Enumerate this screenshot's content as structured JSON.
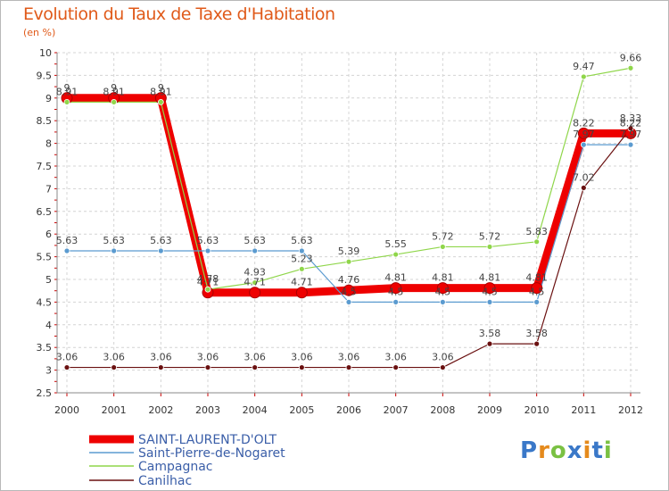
{
  "chart_data": {
    "type": "line",
    "title": "Evolution du Taux de Taxe d'Habitation",
    "subtitle": "(en %)",
    "ylim": [
      2.5,
      10
    ],
    "yticks": [
      "2.5",
      "3",
      "3.5",
      "4",
      "4.5",
      "5",
      "5.5",
      "6",
      "6.5",
      "7",
      "7.5",
      "8",
      "8.5",
      "9",
      "9.5",
      "10"
    ],
    "categories": [
      "2000",
      "2001",
      "2002",
      "2003",
      "2004",
      "2005",
      "2006",
      "2007",
      "2008",
      "2009",
      "2010",
      "2011",
      "2012"
    ],
    "series": [
      {
        "name": "SAINT-LAURENT-D'OLT",
        "color": "#ee0000",
        "values": [
          9,
          9,
          9,
          4.71,
          4.71,
          4.71,
          4.76,
          4.81,
          4.81,
          4.81,
          4.81,
          8.22,
          8.22
        ],
        "labels": [
          "9",
          "9",
          "9",
          "4.71",
          "4.71",
          "4.71",
          "4.76",
          "4.81",
          "4.81",
          "4.81",
          "4.81",
          "8.22",
          "8.22"
        ]
      },
      {
        "name": "Saint-Pierre-de-Nogaret",
        "color": "#5b9bd0",
        "values": [
          5.63,
          5.63,
          5.63,
          5.63,
          5.63,
          5.63,
          4.5,
          4.5,
          4.5,
          4.5,
          4.5,
          7.97,
          7.97
        ],
        "labels": [
          "5.63",
          "5.63",
          "5.63",
          "5.63",
          "5.63",
          "5.63",
          "4.5",
          "4.5",
          "4.5",
          "4.5",
          "4.5",
          "7.97",
          "7.97"
        ]
      },
      {
        "name": "Campagnac",
        "color": "#8fd64a",
        "values": [
          8.91,
          8.91,
          8.91,
          4.78,
          4.93,
          5.23,
          5.39,
          5.55,
          5.72,
          5.72,
          5.83,
          9.47,
          9.66
        ],
        "labels": [
          "8.91",
          "8.91",
          "8.91",
          "4.78",
          "4.93",
          "5.23",
          "5.39",
          "5.55",
          "5.72",
          "5.72",
          "5.83",
          "9.47",
          "9.66"
        ]
      },
      {
        "name": "Canilhac",
        "color": "#6a1010",
        "values": [
          3.06,
          3.06,
          3.06,
          3.06,
          3.06,
          3.06,
          3.06,
          3.06,
          3.06,
          3.58,
          3.58,
          7.02,
          8.33
        ],
        "labels": [
          "3.06",
          "3.06",
          "3.06",
          "3.06",
          "3.06",
          "3.06",
          "3.06",
          "3.06",
          "3.06",
          "3.58",
          "3.58",
          "7.02",
          "8.33"
        ]
      }
    ]
  },
  "logo": {
    "letters": [
      "P",
      "r",
      "o",
      "x",
      "i",
      "t",
      "i"
    ],
    "colors": [
      "#3a78c8",
      "#e58a1c",
      "#7ac143",
      "#3a78c8",
      "#e58a1c",
      "#3a78c8",
      "#7ac143"
    ]
  }
}
